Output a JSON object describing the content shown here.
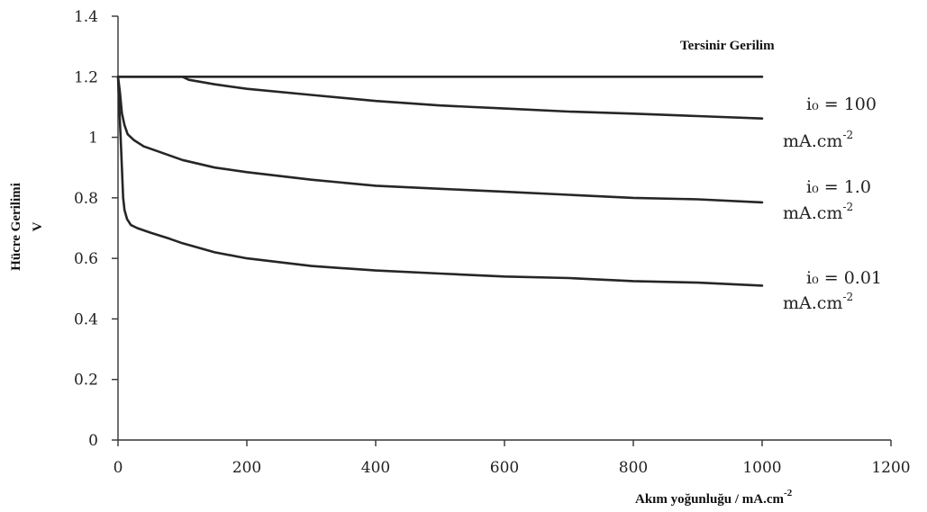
{
  "chart_data": {
    "type": "line",
    "xlabel": "Akım yoğunluğu / mA.cm",
    "xlabel_exp": "-2",
    "ylabel_line1": "Hücre Gerilimi",
    "ylabel_line2": "V",
    "xlim": [
      0,
      1200
    ],
    "ylim": [
      0,
      1.4
    ],
    "x_ticks": [
      0,
      200,
      400,
      600,
      800,
      1000,
      1200
    ],
    "x_tick_labels": [
      "0",
      "200",
      "400",
      "600",
      "800",
      "1000",
      "1200"
    ],
    "y_ticks": [
      0,
      0.2,
      0.4,
      0.6,
      0.8,
      1.0,
      1.2,
      1.4
    ],
    "y_tick_labels": [
      "0",
      "0.2",
      "0.4",
      "0.6",
      "0.8",
      "1",
      "1.2",
      "1.4"
    ],
    "grid": false,
    "annotation": "Tersinir Gerilim",
    "series": [
      {
        "name": "Tersinir Gerilim",
        "x": [
          0,
          1000
        ],
        "y": [
          1.2,
          1.2
        ]
      },
      {
        "label_main": "i₀ = 100",
        "label_unit": "mA.cm",
        "label_exp": "-2",
        "x": [
          0,
          100,
          110,
          150,
          200,
          300,
          400,
          500,
          600,
          700,
          800,
          900,
          1000
        ],
        "y": [
          1.2,
          1.2,
          1.19,
          1.175,
          1.16,
          1.14,
          1.12,
          1.105,
          1.095,
          1.085,
          1.078,
          1.07,
          1.062
        ]
      },
      {
        "label_main": "i₀ = 1.0",
        "label_unit": "mA.cm",
        "label_exp": "-2",
        "x": [
          0,
          3,
          6,
          10,
          15,
          25,
          40,
          60,
          100,
          150,
          200,
          300,
          400,
          500,
          600,
          700,
          800,
          900,
          1000
        ],
        "y": [
          1.2,
          1.15,
          1.08,
          1.04,
          1.01,
          0.99,
          0.97,
          0.955,
          0.925,
          0.9,
          0.885,
          0.86,
          0.84,
          0.83,
          0.82,
          0.81,
          0.8,
          0.795,
          0.785
        ]
      },
      {
        "label_main": "i₀ = 0.01",
        "label_unit": "mA.cm",
        "label_exp": "-2",
        "x": [
          0,
          2,
          4,
          6,
          8,
          10,
          14,
          20,
          30,
          50,
          80,
          100,
          150,
          200,
          300,
          400,
          500,
          600,
          700,
          800,
          900,
          1000
        ],
        "y": [
          1.2,
          1.1,
          1.0,
          0.9,
          0.8,
          0.76,
          0.73,
          0.71,
          0.7,
          0.685,
          0.665,
          0.65,
          0.62,
          0.6,
          0.575,
          0.56,
          0.55,
          0.54,
          0.535,
          0.525,
          0.52,
          0.51
        ]
      }
    ]
  }
}
